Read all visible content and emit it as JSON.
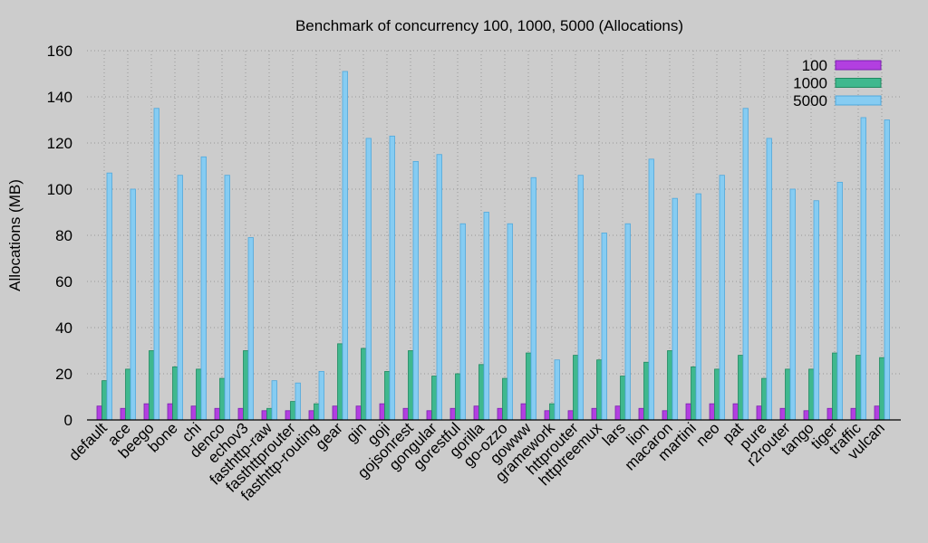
{
  "chart_data": {
    "type": "bar",
    "title": "Benchmark of concurrency 100, 1000, 5000 (Allocations)",
    "xlabel": "",
    "ylabel": "Allocations (MB)",
    "ylim": [
      0,
      160
    ],
    "yticks": [
      0,
      20,
      40,
      60,
      80,
      100,
      120,
      140,
      160
    ],
    "grid": true,
    "legend_position": "top-right",
    "categories": [
      "default",
      "ace",
      "beego",
      "bone",
      "chi",
      "denco",
      "echov3",
      "fasthttp-raw",
      "fasthttprouter",
      "fasthttp-routing",
      "gear",
      "gin",
      "goji",
      "gojsonrest",
      "gongular",
      "gorestful",
      "gorilla",
      "go-ozzo",
      "gowww",
      "gramework",
      "httprouter",
      "httptreemux",
      "lars",
      "lion",
      "macaron",
      "martini",
      "neo",
      "pat",
      "pure",
      "r2router",
      "tango",
      "tiger",
      "traffic",
      "vulcan"
    ],
    "series": [
      {
        "name": "100",
        "color": "#b23fe0",
        "values": [
          6,
          5,
          7,
          7,
          6,
          5,
          5,
          4,
          4,
          4,
          6,
          6,
          7,
          5,
          4,
          5,
          6,
          5,
          7,
          4,
          4,
          5,
          6,
          5,
          4,
          7,
          7,
          7,
          6,
          5,
          4,
          5,
          5,
          6
        ]
      },
      {
        "name": "1000",
        "color": "#3fb88e",
        "values": [
          17,
          22,
          30,
          23,
          22,
          18,
          30,
          5,
          8,
          7,
          33,
          31,
          21,
          30,
          19,
          20,
          24,
          18,
          29,
          7,
          28,
          26,
          19,
          25,
          30,
          23,
          22,
          28,
          18,
          22,
          22,
          29,
          28,
          27
        ]
      },
      {
        "name": "5000",
        "color": "#86ccf2",
        "values": [
          107,
          100,
          135,
          106,
          114,
          106,
          79,
          17,
          16,
          21,
          151,
          122,
          123,
          112,
          115,
          85,
          90,
          85,
          105,
          26,
          106,
          81,
          85,
          113,
          96,
          98,
          106,
          135,
          122,
          100,
          95,
          103,
          131,
          130
        ]
      }
    ]
  }
}
